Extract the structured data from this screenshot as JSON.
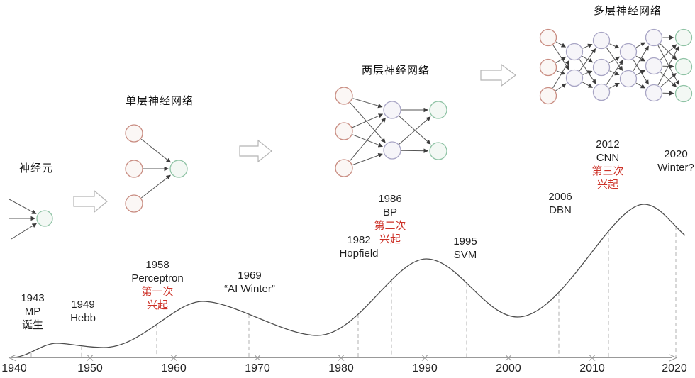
{
  "page_background": "#ffffff",
  "network_diagrams": {
    "neuron": {
      "title": "神经元"
    },
    "single_layer": {
      "title": "单层神经网络"
    },
    "two_layer": {
      "title": "两层神经网络"
    },
    "multi_layer": {
      "title": "多层神经网络"
    },
    "flow_arrow_icon": "right-block-arrow"
  },
  "timeline": {
    "axis_years": [
      "1940",
      "1950",
      "1960",
      "1970",
      "1980",
      "1990",
      "2000",
      "2010",
      "2020"
    ],
    "events": [
      {
        "year": 1943,
        "lines": [
          "1943",
          "MP",
          "诞生"
        ],
        "red_lines": []
      },
      {
        "year": 1949,
        "lines": [
          "1949",
          "Hebb"
        ],
        "red_lines": []
      },
      {
        "year": 1958,
        "lines": [
          "1958",
          "Perceptron",
          "第一次",
          "兴起"
        ],
        "red_lines": [
          2,
          3
        ]
      },
      {
        "year": 1969,
        "lines": [
          "1969",
          "“AI Winter”"
        ],
        "red_lines": []
      },
      {
        "year": 1982,
        "lines": [
          "1982",
          "Hopfield"
        ],
        "red_lines": []
      },
      {
        "year": 1986,
        "lines": [
          "1986",
          "BP",
          "第二次",
          "兴起"
        ],
        "red_lines": [
          2,
          3
        ]
      },
      {
        "year": 1995,
        "lines": [
          "1995",
          "SVM"
        ],
        "red_lines": []
      },
      {
        "year": 2006,
        "lines": [
          "2006",
          "DBN"
        ],
        "red_lines": []
      },
      {
        "year": 2012,
        "lines": [
          "2012",
          "CNN",
          "第三次",
          "兴起"
        ],
        "red_lines": [
          2,
          3
        ]
      },
      {
        "year": 2020,
        "lines": [
          "2020",
          "Winter?"
        ],
        "red_lines": []
      }
    ]
  },
  "hype_curve": {
    "type": "line",
    "x_range": [
      1940,
      2020
    ],
    "points": [
      {
        "year": 1940,
        "level": 0.0
      },
      {
        "year": 1946,
        "level": 0.1
      },
      {
        "year": 1950,
        "level": 0.07
      },
      {
        "year": 1958,
        "level": 0.18
      },
      {
        "year": 1963,
        "level": 0.36
      },
      {
        "year": 1969,
        "level": 0.23
      },
      {
        "year": 1977,
        "level": 0.14
      },
      {
        "year": 1982,
        "level": 0.2
      },
      {
        "year": 1986,
        "level": 0.4
      },
      {
        "year": 1990,
        "level": 0.62
      },
      {
        "year": 1995,
        "level": 0.44
      },
      {
        "year": 2001,
        "level": 0.26
      },
      {
        "year": 2006,
        "level": 0.36
      },
      {
        "year": 2012,
        "level": 0.69
      },
      {
        "year": 2016,
        "level": 0.96
      },
      {
        "year": 2020,
        "level": 0.77
      }
    ],
    "peak_years": [
      1946,
      1963,
      1990,
      2016
    ],
    "trough_years": [
      1955,
      1977,
      2001
    ]
  },
  "colors": {
    "highlight_red": "#cd3228",
    "text": "#1f1f1f",
    "curve": "#4d4d4d",
    "axis": "#999999",
    "dash": "#b0b0b0",
    "node_red_stroke": "#c98d82",
    "node_green_stroke": "#8fc3a5",
    "node_purple_stroke": "#a8a5c5",
    "connection": "#565656",
    "block_arrow_stroke": "#b5b5b5"
  }
}
